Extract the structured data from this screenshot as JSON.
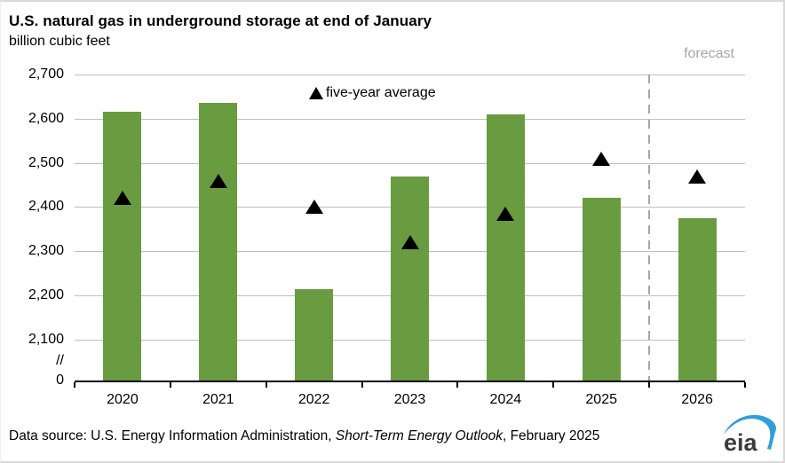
{
  "header": {
    "title": "U.S. natural gas in underground storage at end of January",
    "units": "billion cubic feet"
  },
  "chart_data": {
    "type": "bar",
    "title": "U.S. natural gas in underground storage at end of January",
    "ylabel": "billion cubic feet",
    "categories": [
      "2020",
      "2021",
      "2022",
      "2023",
      "2024",
      "2025",
      "2026"
    ],
    "series": [
      {
        "name": "storage",
        "type": "bar",
        "values": [
          2615,
          2635,
          2215,
          2470,
          2610,
          2420,
          2375
        ]
      },
      {
        "name": "five-year average",
        "type": "scatter-triangle",
        "values": [
          2420,
          2460,
          2400,
          2320,
          2385,
          2510,
          2470
        ]
      }
    ],
    "ylim": [
      2100,
      2700
    ],
    "axis_break": true,
    "yticks": [
      2700,
      2600,
      2500,
      2400,
      2300,
      2200,
      2100
    ],
    "ytick_labels": [
      "2,700",
      "2,600",
      "2,500",
      "2,400",
      "2,300",
      "2,200",
      "2,100"
    ],
    "axis_break_label": "//",
    "zero_label": "0",
    "grid": true,
    "legend": {
      "label": "five-year average",
      "position": "top-center"
    },
    "forecast": {
      "label": "forecast",
      "boundary_after_category": "2025"
    },
    "colors": {
      "bar": "#699b41",
      "marker": "#000000",
      "gridline": "#bfbfbf",
      "gray_text": "#a6a6a6",
      "axis": "#000000"
    }
  },
  "footer": {
    "source_prefix": "Data source: U.S. Energy Information Administration, ",
    "source_italic": "Short-Term Energy Outlook",
    "source_suffix": ", February 2025",
    "logo_text": "eia"
  }
}
